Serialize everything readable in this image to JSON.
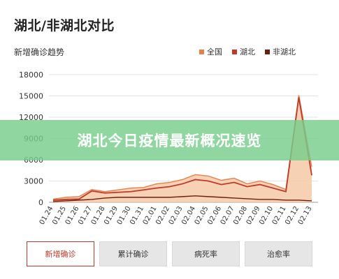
{
  "page_title": "湖北/非湖北对比",
  "banner_text": "湖北今日疫情最新概况速览",
  "tabs": [
    {
      "label": "新增确诊",
      "active": true
    },
    {
      "label": "累计确诊",
      "active": false
    },
    {
      "label": "病死率",
      "active": false
    },
    {
      "label": "治愈率",
      "active": false
    }
  ],
  "colors": {
    "national": "#e8804a",
    "hubei": "#c0392b",
    "non_hubei": "#6b1f12",
    "area_fill": "#f6c9a6"
  },
  "chart_data": {
    "type": "line",
    "title": "新增确诊趋势",
    "xlabel": "",
    "ylabel": "",
    "ylim": [
      0,
      18000
    ],
    "yticks": [
      0,
      3000,
      6000,
      9000,
      12000,
      15000,
      18000
    ],
    "ytick_labels": [
      "0",
      "3000",
      "6000",
      "9000",
      "12000",
      "15000",
      "18000"
    ],
    "grid": true,
    "legend_position": "top-right",
    "categories": [
      "01.24",
      "01.25",
      "01.26",
      "01.27",
      "01.28",
      "01.29",
      "01.30",
      "01.31",
      "02.01",
      "02.02",
      "02.03",
      "02.04",
      "02.05",
      "02.06",
      "02.07",
      "02.08",
      "02.09",
      "02.10",
      "02.11",
      "02.12",
      "02.13"
    ],
    "series": [
      {
        "name": "全国",
        "values": [
          450,
          700,
          800,
          1800,
          1500,
          1750,
          2000,
          2100,
          2600,
          2800,
          3200,
          3900,
          3700,
          3100,
          3400,
          2600,
          3000,
          2500,
          1800,
          15100,
          5000
        ]
      },
      {
        "name": "湖北",
        "values": [
          300,
          400,
          450,
          1600,
          1300,
          1400,
          1500,
          1750,
          2000,
          2200,
          2600,
          3200,
          3000,
          2500,
          2800,
          2200,
          2500,
          2000,
          1500,
          14800,
          3800
        ]
      },
      {
        "name": "非湖北",
        "values": [
          100,
          200,
          300,
          400,
          600,
          700,
          700,
          700,
          700,
          700,
          800,
          900,
          800,
          700,
          600,
          500,
          400,
          400,
          300,
          300,
          200
        ]
      }
    ]
  }
}
